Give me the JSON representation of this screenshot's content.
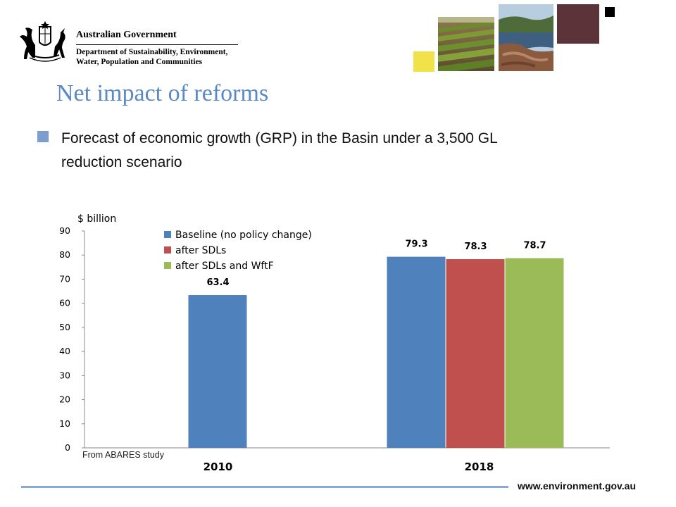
{
  "header": {
    "government": "Australian Government",
    "department_lines": [
      "Department of Sustainability, Environment,",
      "Water, Population and Communities"
    ]
  },
  "decor": {
    "yellow_square": "#f2e24a",
    "maroon_square": "#5c3338",
    "black_square": "#000000",
    "photos": [
      "crop-rows-photo",
      "river-landscape-photo"
    ]
  },
  "slide": {
    "title": "Net impact of reforms",
    "bullet_line1": "Forecast of economic growth (GRP) in the Basin under a 3,500 GL",
    "bullet_line2": "reduction scenario",
    "source_note": "From ABARES study"
  },
  "footer": {
    "url": "www.environment.gov.au"
  },
  "chart_data": {
    "type": "bar",
    "ylabel": "$ billion",
    "ylim": [
      0,
      90
    ],
    "yticks": [
      0,
      10,
      20,
      30,
      40,
      50,
      60,
      70,
      80,
      90
    ],
    "categories": [
      "2010",
      "2018"
    ],
    "series": [
      {
        "name": "Baseline (no policy change)",
        "color": "#4f81bd",
        "values": [
          63.4,
          79.3
        ]
      },
      {
        "name": "after SDLs",
        "color": "#c0504d",
        "values": [
          null,
          78.3
        ]
      },
      {
        "name": "after SDLs and WftF",
        "color": "#9bbb59",
        "values": [
          null,
          78.7
        ]
      }
    ],
    "data_labels": true,
    "legend_position": "top-left",
    "grid": false
  }
}
